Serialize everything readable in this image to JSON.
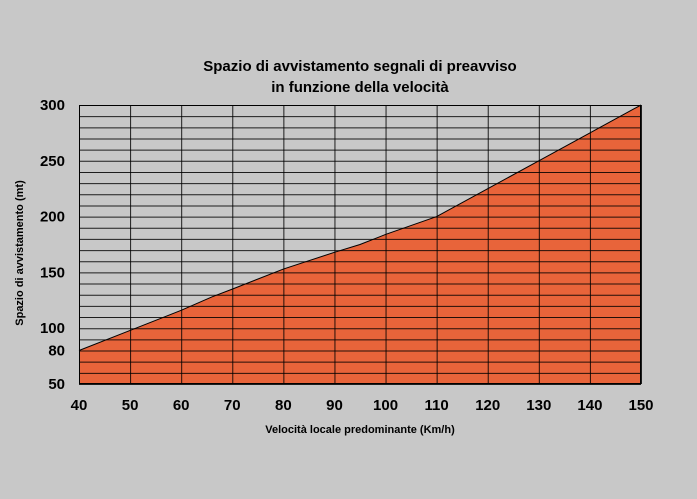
{
  "colors": {
    "background": "#c8c8c8",
    "area_fill": "#e8643a",
    "grid": "#000000"
  },
  "chart_data": {
    "type": "area",
    "title": [
      "Spazio di avvistamento segnali di preavviso",
      "in funzione della velocità"
    ],
    "xlabel": "Velocità locale predominante (Km/h)",
    "ylabel": "Spazio di avvistamento (mt)",
    "xlim": [
      40,
      150
    ],
    "ylim": [
      50,
      300
    ],
    "x_ticks": [
      "40",
      "50",
      "60",
      "70",
      "80",
      "90",
      "100",
      "110",
      "120",
      "130",
      "140",
      "150"
    ],
    "y_ticks": [
      "50",
      "80",
      "100",
      "150",
      "200",
      "250",
      "300"
    ],
    "grid": true,
    "x": [
      40,
      50,
      60,
      66,
      70,
      80,
      90,
      95,
      100,
      110,
      120,
      130,
      140,
      150
    ],
    "values": [
      80,
      98,
      116,
      128,
      135,
      153,
      168,
      175,
      184,
      200,
      225,
      250,
      275,
      300
    ]
  }
}
